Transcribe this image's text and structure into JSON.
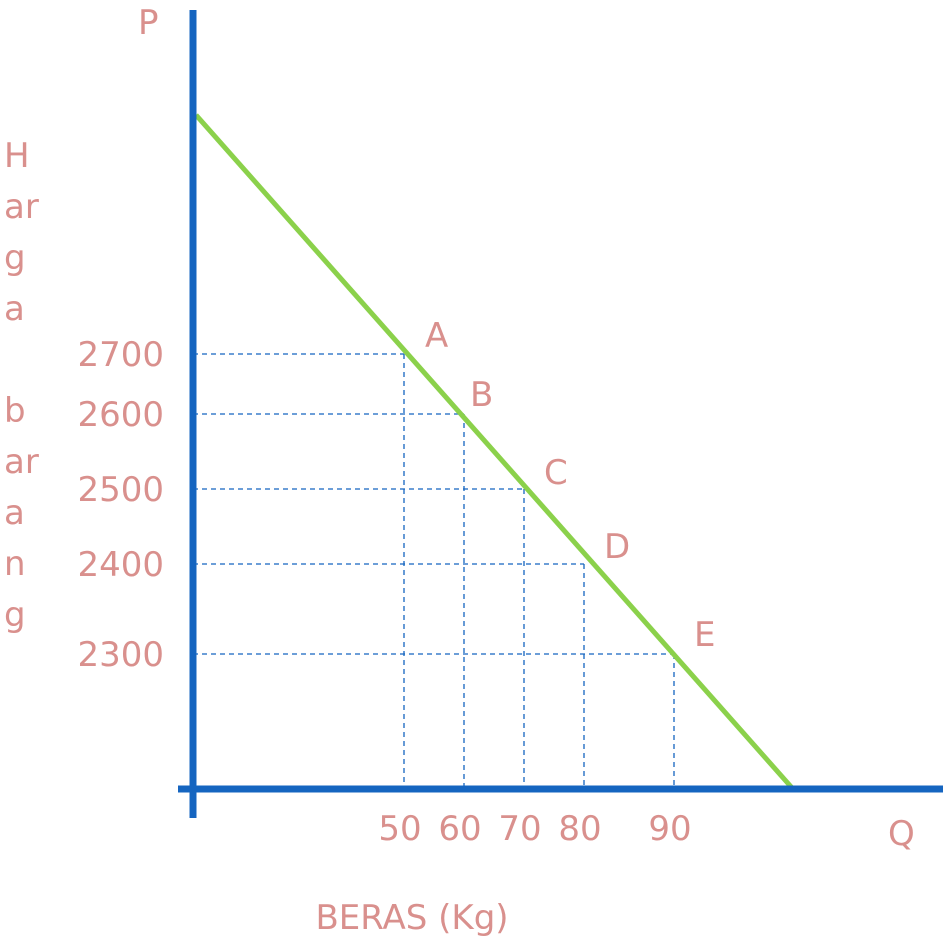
{
  "chart_data": {
    "type": "line",
    "title": "",
    "axis_p_label": "P",
    "axis_q_label": "Q",
    "xlabel": "BERAS (Kg)",
    "ylabel_lines": [
      "H",
      "ar",
      "g",
      "a",
      "",
      "b",
      "ar",
      "a",
      "n",
      "g"
    ],
    "y_ticks": [
      "2700",
      "2600",
      "2500",
      "2400",
      "2300"
    ],
    "x_ticks": [
      "50",
      "60",
      "70",
      "80",
      "90"
    ],
    "points": [
      {
        "label": "A",
        "x": 50,
        "y": 2700
      },
      {
        "label": "B",
        "x": 60,
        "y": 2600
      },
      {
        "label": "C",
        "x": 70,
        "y": 2500
      },
      {
        "label": "D",
        "x": 80,
        "y": 2400
      },
      {
        "label": "E",
        "x": 90,
        "y": 2300
      }
    ],
    "grid": false,
    "colors": {
      "axis": "#1565c0",
      "line": "#8bd14b",
      "guides": "#1565c0",
      "text": "#d9908d"
    }
  }
}
